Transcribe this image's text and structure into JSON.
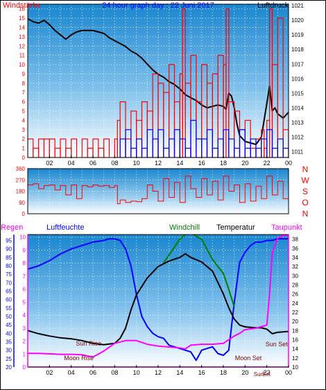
{
  "colors": {
    "wind": "#ff0000",
    "gust": "#0000ff",
    "pressure": "#000000",
    "humidity": "#0000ff",
    "windchill": "#008000",
    "temperature": "#000000",
    "dewpoint": "#ff00ff",
    "rain": "#ff00ff",
    "winddir": "#ff0000",
    "sun_moon_label": "#800000",
    "axis_title_blue": "#0000ff",
    "axis_title_red": "#ff0000",
    "sky_top": "#1a86d0",
    "sky_bottom": "#ffffff"
  },
  "chart_data": [
    {
      "type": "line",
      "title": "24 hour graph day : 22 Juni 2017",
      "left_axis_title": "Windstärke",
      "right_axis_title": "Luftdruck",
      "x_ticks": [
        "02",
        "04",
        "06",
        "08",
        "10",
        "12",
        "14",
        "16",
        "18",
        "20",
        "22",
        "00"
      ],
      "left_ticks": [
        "0",
        "1",
        "2",
        "3",
        "4",
        "5",
        "6",
        "7",
        "8",
        "9",
        "10",
        "11",
        "12",
        "13",
        "14",
        "15",
        "16"
      ],
      "right_ticks": [
        "1011",
        "1012",
        "1013",
        "1014",
        "1015",
        "1016",
        "1017",
        "1018",
        "1019",
        "1020",
        "1021"
      ],
      "ylim_left": [
        0,
        16.5
      ],
      "ylim_right": [
        1010.6,
        1021.1
      ],
      "grid": true,
      "series": [
        {
          "name": "Luftdruck",
          "axis": "right",
          "x": [
            0.0,
            0.5,
            1.0,
            1.5,
            2.0,
            2.5,
            3.0,
            3.5,
            4.0,
            4.5,
            5.0,
            5.5,
            6.0,
            6.5,
            7.0,
            7.5,
            8.0,
            8.5,
            9.0,
            9.5,
            10.0,
            10.5,
            11.0,
            11.5,
            12.0,
            12.5,
            13.0,
            13.5,
            14.0,
            14.5,
            15.0,
            15.5,
            16.0,
            16.5,
            17.0,
            17.5,
            18.0,
            18.25,
            18.5,
            18.75,
            19.0,
            19.25,
            19.5,
            19.75,
            20.0,
            20.5,
            21.0,
            21.5,
            22.0,
            22.25,
            22.5,
            22.75,
            23.0,
            23.5,
            24.0
          ],
          "values": [
            1020.1,
            1019.9,
            1019.8,
            1020.0,
            1019.7,
            1019.3,
            1019.0,
            1018.7,
            1019.0,
            1019.2,
            1019.3,
            1019.3,
            1019.3,
            1019.2,
            1019.1,
            1018.8,
            1018.6,
            1018.4,
            1018.2,
            1017.9,
            1017.7,
            1017.4,
            1017.0,
            1016.6,
            1016.3,
            1016.1,
            1015.8,
            1015.6,
            1015.3,
            1014.9,
            1014.7,
            1014.5,
            1014.2,
            1014.0,
            1014.1,
            1014.2,
            1014.1,
            1013.9,
            1015.0,
            1014.8,
            1014.0,
            1012.9,
            1012.1,
            1011.9,
            1011.7,
            1011.6,
            1011.5,
            1012.0,
            1014.3,
            1015.5,
            1013.8,
            1014.0,
            1013.6,
            1013.3,
            1013.7
          ]
        },
        {
          "name": "Windstärke",
          "axis": "left",
          "style": "spikes",
          "x": [
            0.0,
            0.5,
            1.0,
            1.5,
            2.0,
            2.5,
            3.0,
            3.5,
            4.0,
            4.5,
            5.0,
            5.5,
            6.0,
            6.5,
            7.0,
            7.5,
            8.0,
            8.25,
            8.5,
            9.0,
            9.5,
            10.0,
            10.5,
            11.0,
            11.5,
            12.0,
            12.5,
            13.0,
            13.5,
            14.0,
            14.25,
            14.5,
            15.0,
            15.5,
            16.0,
            16.5,
            17.0,
            17.5,
            18.0,
            18.25,
            18.5,
            19.0,
            19.5,
            20.0,
            20.5,
            21.0,
            21.5,
            21.75,
            22.0,
            22.25,
            22.5,
            23.0,
            23.5,
            24.0
          ],
          "values": [
            2,
            1,
            2,
            2,
            2,
            1,
            2,
            1,
            2,
            0,
            2,
            1,
            2,
            1,
            2,
            0,
            2,
            4,
            6,
            2,
            5,
            4,
            6,
            5,
            9,
            8,
            7,
            10,
            6,
            9,
            16,
            8,
            11,
            6,
            10,
            8,
            9,
            11,
            10,
            16,
            6,
            5,
            3,
            4,
            1,
            2,
            3,
            1,
            4,
            16,
            10,
            15,
            3,
            5
          ]
        },
        {
          "name": "Windböen",
          "axis": "left",
          "style": "spikes",
          "x": [
            8.5,
            9.0,
            9.5,
            10.0,
            10.5,
            11.0,
            11.5,
            12.0,
            12.5,
            13.0,
            13.5,
            14.0,
            14.5,
            15.0,
            15.5,
            16.0,
            16.5,
            17.0,
            17.5,
            18.0,
            18.5,
            19.0,
            19.5,
            20.0,
            20.5,
            21.0,
            21.5,
            22.0,
            22.5,
            23.0,
            23.5,
            24.0
          ],
          "values": [
            2,
            3,
            1,
            2,
            1,
            3,
            2,
            3,
            1,
            2,
            3,
            2,
            1,
            4,
            2,
            2,
            3,
            1,
            2,
            3,
            2,
            1,
            3,
            1,
            2,
            1,
            2,
            3,
            1,
            2,
            1,
            2
          ]
        }
      ]
    },
    {
      "type": "line",
      "right_axis_title_letters": [
        "N",
        "W",
        "S",
        "O",
        "N"
      ],
      "left_ticks": [
        "0",
        "90",
        "180",
        "270",
        "360"
      ],
      "ylim": [
        0,
        360
      ],
      "series": [
        {
          "name": "Windrichtung",
          "x": [
            0.0,
            0.5,
            1.0,
            1.5,
            2.0,
            2.5,
            3.0,
            3.5,
            4.0,
            4.5,
            5.0,
            5.5,
            6.0,
            6.5,
            7.0,
            7.5,
            8.0,
            8.25,
            8.5,
            9.0,
            9.5,
            10.0,
            10.5,
            11.0,
            11.5,
            12.0,
            12.5,
            13.0,
            13.5,
            14.0,
            14.5,
            15.0,
            15.5,
            16.0,
            16.5,
            17.0,
            17.5,
            18.0,
            18.5,
            19.0,
            19.5,
            20.0,
            20.5,
            21.0,
            21.5,
            22.0,
            22.5,
            23.0,
            23.5,
            24.0
          ],
          "values": [
            230,
            240,
            200,
            225,
            230,
            190,
            225,
            150,
            230,
            120,
            225,
            215,
            230,
            220,
            225,
            210,
            225,
            80,
            110,
            90,
            100,
            95,
            120,
            230,
            180,
            100,
            280,
            130,
            250,
            90,
            300,
            200,
            130,
            280,
            150,
            260,
            110,
            300,
            180,
            230,
            90,
            240,
            100,
            220,
            120,
            300,
            150,
            260,
            120,
            200
          ]
        }
      ]
    },
    {
      "type": "line",
      "left_axis_titles": [
        "Regen",
        "Luftfeuchte"
      ],
      "right_axis_titles": [
        "Windchill",
        "Temperatur",
        "Taupunkt"
      ],
      "x_ticks": [
        "02",
        "04",
        "06",
        "08",
        "10",
        "12",
        "14",
        "16",
        "18",
        "20",
        "22",
        "00"
      ],
      "rain_ticks": [
        "0",
        "1",
        "2",
        "3",
        "4",
        "5",
        "6",
        "7",
        "8",
        "9",
        "10"
      ],
      "humidity_ticks": [
        "20",
        "25",
        "30",
        "35",
        "40",
        "45",
        "50",
        "55",
        "60",
        "65",
        "70",
        "75",
        "80",
        "85",
        "90",
        "95"
      ],
      "temp_ticks": [
        "10",
        "12",
        "14",
        "16",
        "18",
        "20",
        "22",
        "24",
        "26",
        "28",
        "30",
        "32",
        "34",
        "36",
        "38"
      ],
      "ylim_rain": [
        0,
        10.2
      ],
      "ylim_humidity": [
        20,
        98.5
      ],
      "ylim_temp": [
        10,
        39
      ],
      "annotations": [
        {
          "text": "Sun Rise",
          "x": 5.6
        },
        {
          "text": "Moon Rise",
          "x": 4.7
        },
        {
          "text": "Moon Set",
          "x": 20.3
        },
        {
          "text": "Sun Set",
          "x": 22.9
        },
        {
          "text": "Sun",
          "x": 21.25
        },
        {
          "text": "Set",
          "x": 21.95
        }
      ],
      "series": [
        {
          "name": "Luftfeuchte",
          "axis": "humidity",
          "x": [
            0.0,
            1.0,
            2.0,
            3.0,
            4.0,
            5.0,
            6.0,
            7.0,
            7.5,
            8.0,
            8.5,
            9.0,
            9.5,
            10.0,
            10.5,
            11.0,
            11.5,
            12.0,
            12.5,
            13.0,
            13.5,
            14.0,
            14.5,
            15.0,
            15.5,
            16.0,
            16.5,
            17.0,
            17.5,
            18.0,
            18.5,
            19.0,
            19.5,
            20.0,
            20.5,
            21.0,
            21.5,
            22.0,
            22.5,
            23.0,
            23.5,
            24.0
          ],
          "values": [
            78,
            80,
            83,
            87,
            90,
            92,
            94,
            95,
            96,
            96,
            95,
            90,
            80,
            63,
            50,
            44,
            40,
            38,
            37,
            33,
            32,
            31,
            30,
            29,
            24,
            30,
            31,
            32,
            28,
            27,
            30,
            58,
            82,
            88,
            92,
            94,
            94,
            95,
            95,
            96,
            96,
            96
          ]
        },
        {
          "name": "Temperatur",
          "axis": "temp",
          "x": [
            0.0,
            1.0,
            2.0,
            3.0,
            4.0,
            5.0,
            6.0,
            7.0,
            8.0,
            8.5,
            9.0,
            9.5,
            10.0,
            11.0,
            12.0,
            13.0,
            14.0,
            14.5,
            15.0,
            16.0,
            17.0,
            17.5,
            18.0,
            18.5,
            19.0,
            19.5,
            20.0,
            20.5,
            21.0,
            21.5,
            22.0,
            22.5,
            23.0,
            24.0
          ],
          "values": [
            18.0,
            17.3,
            16.8,
            16.4,
            16.2,
            15.8,
            15.2,
            14.9,
            15.2,
            16.3,
            18.5,
            22.5,
            25.8,
            29.5,
            32.0,
            33.2,
            34.0,
            34.8,
            34.0,
            33.0,
            31.0,
            28.5,
            26.0,
            23.0,
            20.5,
            19.2,
            18.8,
            18.7,
            18.6,
            18.6,
            18.3,
            17.3,
            17.6,
            17.8
          ]
        },
        {
          "name": "Windchill",
          "axis": "temp",
          "x": [
            12.5,
            13.0,
            14.0,
            14.5,
            15.0,
            15.5,
            16.0,
            17.0,
            17.5,
            18.0,
            18.5,
            19.0
          ],
          "values": [
            32.8,
            34.5,
            38.0,
            39.0,
            39.5,
            38.6,
            38.0,
            33.6,
            32.0,
            30.5,
            27.0,
            23.2
          ]
        },
        {
          "name": "Taupunkt",
          "axis": "temp",
          "x": [
            0.0,
            1.0,
            2.0,
            3.0,
            4.0,
            5.0,
            6.0,
            7.0,
            8.0,
            9.0,
            10.0,
            11.0,
            12.0,
            13.0,
            14.0,
            14.5,
            15.0,
            16.0,
            17.0,
            18.0,
            19.0,
            19.5,
            20.0,
            21.0,
            22.0,
            22.25,
            22.5,
            23.0,
            23.5,
            24.0
          ],
          "values": [
            13.0,
            13.0,
            12.9,
            12.8,
            12.8,
            12.7,
            12.2,
            13.5,
            15.2,
            15.8,
            15.8,
            15.0,
            14.6,
            14.4,
            14.2,
            14.0,
            14.8,
            15.0,
            15.0,
            15.2,
            16.8,
            17.4,
            18.2,
            18.5,
            19.2,
            26.0,
            35.0,
            38.2,
            38.8,
            38.8
          ]
        },
        {
          "name": "Regen",
          "axis": "rain",
          "x": [
            0.0,
            20.0,
            20.5,
            21.0,
            21.5,
            22.0,
            22.5,
            23.0,
            24.0
          ],
          "values": [
            0,
            0,
            0,
            0,
            0,
            0,
            0,
            0,
            0
          ]
        }
      ]
    }
  ]
}
